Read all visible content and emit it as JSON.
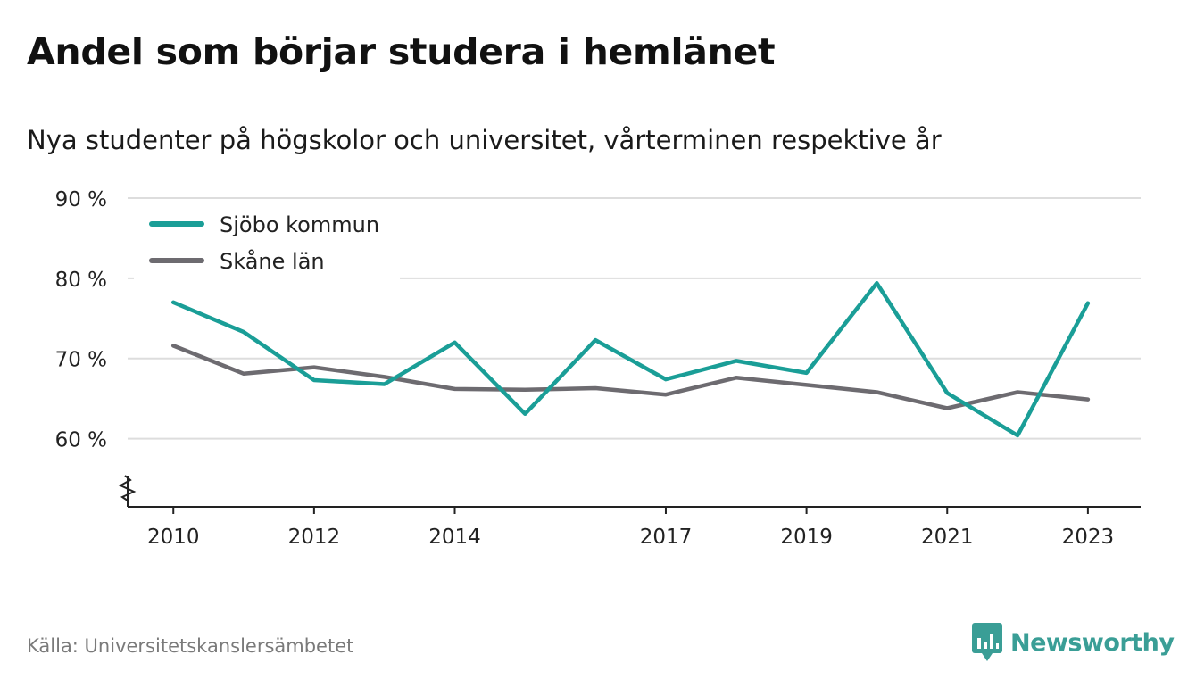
{
  "title": "Andel som börjar studera i hemlänet",
  "subtitle": "Nya studenter på högskolor och universitet, vårterminen respektive år",
  "source": "Källa: Universitetskanslersämbetet",
  "brand": "Newsworthy",
  "colors": {
    "sjobo": "#1a9e97",
    "skane": "#6d6b70",
    "grid": "#dddddd",
    "axis": "#222222",
    "brand": "#3a9e96"
  },
  "chart_data": {
    "type": "line",
    "x": [
      2010,
      2011,
      2012,
      2013,
      2014,
      2015,
      2016,
      2017,
      2018,
      2019,
      2020,
      2021,
      2022,
      2023
    ],
    "x_tick_values": [
      2010,
      2012,
      2014,
      2017,
      2019,
      2021,
      2023
    ],
    "x_tick_labels": [
      "2010",
      "2012",
      "2014",
      "2017",
      "2019",
      "2021",
      "2023"
    ],
    "y_tick_values": [
      60,
      70,
      80,
      90
    ],
    "y_tick_labels": [
      "60 %",
      "70 %",
      "80 %",
      "90 %"
    ],
    "ylim": [
      51.5,
      90
    ],
    "y_axis_break": true,
    "grid": true,
    "legend_position": "top-left",
    "series": [
      {
        "name": "Sjöbo kommun",
        "color": "#1a9e97",
        "values": [
          77.0,
          73.3,
          67.3,
          66.8,
          72.0,
          63.1,
          72.3,
          67.4,
          69.7,
          68.2,
          79.4,
          65.7,
          60.4,
          76.9
        ]
      },
      {
        "name": "Skåne län",
        "color": "#6d6b70",
        "values": [
          71.6,
          68.1,
          68.9,
          67.7,
          66.2,
          66.1,
          66.3,
          65.5,
          67.6,
          66.7,
          65.8,
          63.8,
          65.8,
          64.9
        ]
      }
    ]
  }
}
